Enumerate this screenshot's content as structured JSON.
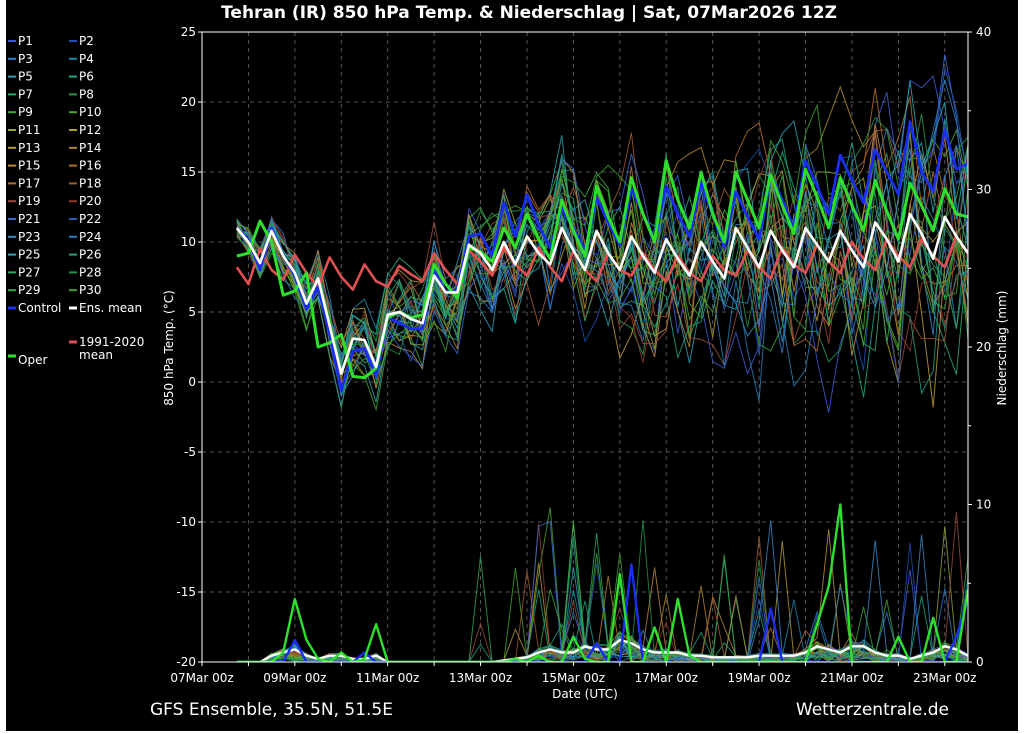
{
  "chart_data": {
    "type": "line",
    "title": "Tehran  (IR)  850 hPa Temp. & Niederschlag | Sat, 07Mar2026 12Z",
    "xlabel": "Date (UTC)",
    "ylabel": "850 hPa Temp. (°C)",
    "ylabel_right": "Niederschlag (mm)",
    "ylim": [
      -20,
      25
    ],
    "ylim_right": [
      0,
      40
    ],
    "yticks": [
      "25",
      "20",
      "15",
      "10",
      "5",
      "0",
      "-5",
      "-10",
      "-15",
      "-20"
    ],
    "yticks_right": [
      "40",
      "30",
      "20",
      "10",
      "0"
    ],
    "x_ticks": [
      "07Mar 00z",
      "09Mar 00z",
      "11Mar 00z",
      "13Mar 00z",
      "15Mar 00z",
      "17Mar 00z",
      "19Mar 00z",
      "21Mar 00z",
      "23Mar 00z"
    ],
    "x_unit": "Mar 2026, steps of 6h from 07Mar 18z",
    "x": [
      "07Mar 18z",
      "08Mar 00z",
      "08Mar 06z",
      "08Mar 12z",
      "08Mar 18z",
      "09Mar 00z",
      "09Mar 06z",
      "09Mar 12z",
      "09Mar 18z",
      "10Mar 00z",
      "10Mar 06z",
      "10Mar 12z",
      "10Mar 18z",
      "11Mar 00z",
      "11Mar 06z",
      "11Mar 12z",
      "11Mar 18z",
      "12Mar 00z",
      "12Mar 06z",
      "12Mar 12z",
      "12Mar 18z",
      "13Mar 00z",
      "13Mar 06z",
      "13Mar 12z",
      "13Mar 18z",
      "14Mar 00z",
      "14Mar 06z",
      "14Mar 12z",
      "14Mar 18z",
      "15Mar 00z",
      "15Mar 06z",
      "15Mar 12z",
      "15Mar 18z",
      "16Mar 00z",
      "16Mar 06z",
      "16Mar 12z",
      "16Mar 18z",
      "17Mar 00z",
      "17Mar 06z",
      "17Mar 12z",
      "17Mar 18z",
      "18Mar 00z",
      "18Mar 06z",
      "18Mar 12z",
      "18Mar 18z",
      "19Mar 00z",
      "19Mar 06z",
      "19Mar 12z",
      "19Mar 18z",
      "20Mar 00z",
      "20Mar 06z",
      "20Mar 12z",
      "20Mar 18z",
      "21Mar 00z",
      "21Mar 06z",
      "21Mar 12z",
      "21Mar 18z",
      "22Mar 00z",
      "22Mar 06z",
      "22Mar 12z",
      "22Mar 18z",
      "23Mar 00z",
      "23Mar 06z",
      "23Mar 12z"
    ],
    "grid": true,
    "legend_position": "left",
    "legend": [
      {
        "name": "P1",
        "color": "#3c5ad2"
      },
      {
        "name": "P2",
        "color": "#1e4fb4"
      },
      {
        "name": "P3",
        "color": "#2b7fc8"
      },
      {
        "name": "P4",
        "color": "#1c8ab0"
      },
      {
        "name": "P5",
        "color": "#2aa0b0"
      },
      {
        "name": "P6",
        "color": "#1aa88a"
      },
      {
        "name": "P7",
        "color": "#2fa870"
      },
      {
        "name": "P8",
        "color": "#2c9a4e"
      },
      {
        "name": "P9",
        "color": "#3aa83a"
      },
      {
        "name": "P10",
        "color": "#48a830"
      },
      {
        "name": "P11",
        "color": "#8ea83a"
      },
      {
        "name": "P12",
        "color": "#a8a02a"
      },
      {
        "name": "P13",
        "color": "#b89a3a"
      },
      {
        "name": "P14",
        "color": "#b08a2a"
      },
      {
        "name": "P15",
        "color": "#c08a40"
      },
      {
        "name": "P16",
        "color": "#b0702a"
      },
      {
        "name": "P17",
        "color": "#b86a3a"
      },
      {
        "name": "P18",
        "color": "#a05a30"
      },
      {
        "name": "P19",
        "color": "#9a4a3a"
      },
      {
        "name": "P20",
        "color": "#903a2a"
      },
      {
        "name": "P21",
        "color": "#3c6ad2"
      },
      {
        "name": "P22",
        "color": "#2c5ab4"
      },
      {
        "name": "P23",
        "color": "#3a8ac8"
      },
      {
        "name": "P24",
        "color": "#2a7ab0"
      },
      {
        "name": "P25",
        "color": "#2aa8b8"
      },
      {
        "name": "P26",
        "color": "#20a080"
      },
      {
        "name": "P27",
        "color": "#30a860"
      },
      {
        "name": "P28",
        "color": "#28904a"
      },
      {
        "name": "P29",
        "color": "#3aa840"
      },
      {
        "name": "P30",
        "color": "#40a030"
      },
      {
        "name": "Control",
        "color": "#1a2ef0"
      },
      {
        "name": "Ens. mean",
        "color": "#ffffff"
      },
      {
        "name": "1991-2020 mean",
        "color": "#e05050"
      },
      {
        "name": "Oper",
        "color": "#2ee02e"
      }
    ],
    "series": [
      {
        "name": "Ens. mean",
        "axis": "left",
        "color": "#ffffff",
        "values": [
          11,
          10,
          8.5,
          10.8,
          9,
          7.8,
          5.6,
          7.4,
          4,
          0.6,
          3.1,
          3,
          1.1,
          4.8,
          5,
          4.5,
          4.2,
          7.6,
          6.4,
          6.4,
          9.8,
          9.2,
          8,
          10,
          8.4,
          10.4,
          9.2,
          8.4,
          11,
          9.4,
          8,
          10.8,
          9.2,
          8,
          10.4,
          9,
          7.8,
          10.2,
          8.8,
          7.6,
          10,
          8.6,
          7.4,
          11,
          9.6,
          8.2,
          10.8,
          9.4,
          8.2,
          11,
          9.8,
          8.6,
          10.8,
          9.4,
          8.2,
          11.4,
          10.2,
          8.6,
          12,
          10.6,
          8.8,
          11.8,
          10.4,
          9.2
        ]
      },
      {
        "name": "Oper",
        "axis": "left",
        "color": "#2ee02e",
        "values": [
          9,
          9.2,
          11.5,
          10,
          6.2,
          6.5,
          7.8,
          2.5,
          2.8,
          3.4,
          0.4,
          0.3,
          1,
          4.6,
          5,
          4.6,
          4.8,
          8.4,
          7,
          6,
          9.6,
          9.3,
          8.6,
          11,
          9.6,
          12,
          10.2,
          8.8,
          13,
          10.8,
          9,
          14,
          11.8,
          10,
          14.6,
          12,
          10,
          15.8,
          13,
          11,
          15,
          12,
          10,
          15,
          13,
          11,
          14.8,
          12.6,
          10.6,
          15.2,
          13.2,
          11,
          14.6,
          12.6,
          10.8,
          14.4,
          12.2,
          10.2,
          14.2,
          12.6,
          10.8,
          13.8,
          12,
          11.8
        ]
      },
      {
        "name": "1991-2020 mean",
        "axis": "left",
        "color": "#e05050",
        "values": [
          8.2,
          7,
          9.5,
          8,
          7.3,
          9.1,
          7.8,
          6.8,
          8.9,
          7.5,
          6.6,
          8.4,
          7.2,
          6.8,
          8.3,
          7.7,
          7.2,
          9.2,
          8,
          7,
          9.4,
          8.6,
          7.6,
          9.6,
          8.4,
          7.6,
          9.6,
          8.2,
          7.2,
          9.4,
          8,
          7.2,
          9.2,
          8,
          7.6,
          9.2,
          8,
          7.2,
          9,
          7.8,
          7.2,
          9,
          8,
          7.6,
          9.4,
          8.2,
          7.4,
          9.6,
          8.4,
          7.8,
          9.8,
          8.6,
          7.8,
          10,
          8.8,
          8,
          10.2,
          9,
          8.2,
          10.2,
          9,
          8.2,
          10.4,
          9.2
        ]
      },
      {
        "name": "Control",
        "axis": "left",
        "color": "#1a2ef0",
        "values": [
          11,
          10.2,
          8,
          11,
          9,
          7.6,
          5.2,
          6.8,
          3.4,
          -0.6,
          2.2,
          2.4,
          0.4,
          4.6,
          4.2,
          3.8,
          3.8,
          8,
          6.4,
          6.6,
          10.4,
          10.6,
          9,
          12.8,
          10.4,
          13.4,
          11.2,
          9.6,
          12.4,
          11,
          9.4,
          13.2,
          11.4,
          9.8,
          13.8,
          12,
          10.2,
          14,
          12,
          10.4,
          14.2,
          12,
          9.6,
          13.6,
          11.8,
          10.2,
          14.8,
          13,
          11,
          15.8,
          14,
          12,
          16.2,
          14.4,
          12.8,
          16.6,
          15,
          13.4,
          18.6,
          15,
          13.6,
          18,
          15.2,
          15.6
        ]
      },
      {
        "name": "Precip Oper",
        "axis": "right",
        "color": "#2ee02e",
        "values": [
          0,
          0,
          0,
          0,
          0.6,
          4,
          1.4,
          0.2,
          0,
          0.6,
          0,
          0.2,
          2.4,
          0,
          0,
          0,
          0,
          0,
          0,
          0,
          0,
          0,
          0,
          0,
          0.2,
          0,
          0.4,
          0,
          0,
          1.6,
          0.2,
          0,
          0,
          5.6,
          0,
          0,
          2.2,
          0,
          4,
          0.4,
          0,
          0,
          0,
          0,
          0,
          0,
          0,
          0,
          0,
          0,
          2.4,
          4.8,
          10,
          0,
          0,
          0,
          0,
          1.6,
          0,
          0,
          2.8,
          0,
          0,
          4.6
        ]
      },
      {
        "name": "Precip Control",
        "axis": "right",
        "color": "#1a2ef0",
        "values": [
          0,
          0,
          0,
          0,
          0,
          1.4,
          0,
          0,
          0,
          0,
          0,
          0.6,
          0,
          0,
          0,
          0,
          0,
          0,
          0,
          0,
          0,
          0,
          0,
          0,
          0,
          0,
          0,
          0,
          0,
          0,
          0,
          1.2,
          0,
          0,
          6.2,
          0,
          0,
          0,
          0,
          0,
          0,
          0,
          0,
          0,
          0,
          0,
          3.4,
          0,
          0,
          0,
          0,
          0,
          0,
          0,
          0,
          0,
          0,
          0,
          0,
          0,
          0,
          0,
          1.6,
          4
        ]
      },
      {
        "name": "Precip Ens. mean",
        "axis": "right",
        "color": "#ffffff",
        "values": [
          0,
          0,
          0,
          0.4,
          0.6,
          0.8,
          0.4,
          0.2,
          0.4,
          0.4,
          0.2,
          0.2,
          0.4,
          0,
          0,
          0,
          0,
          0,
          0,
          0,
          0,
          0,
          0,
          0.1,
          0.2,
          0.3,
          0.6,
          0.8,
          0.6,
          0.6,
          1,
          0.8,
          0.8,
          1.4,
          1.2,
          0.8,
          0.6,
          0.6,
          0.6,
          0.4,
          0.4,
          0.3,
          0.3,
          0.3,
          0.3,
          0.4,
          0.4,
          0.4,
          0.4,
          0.6,
          1,
          0.8,
          0.6,
          1,
          1,
          0.6,
          0.4,
          0.4,
          0.2,
          0.4,
          0.6,
          1,
          0.8,
          0.4
        ]
      }
    ]
  },
  "footer": {
    "left_text": "GFS Ensemble, 35.5N, 51.5E",
    "right_text": "Wetterzentrale.de"
  }
}
